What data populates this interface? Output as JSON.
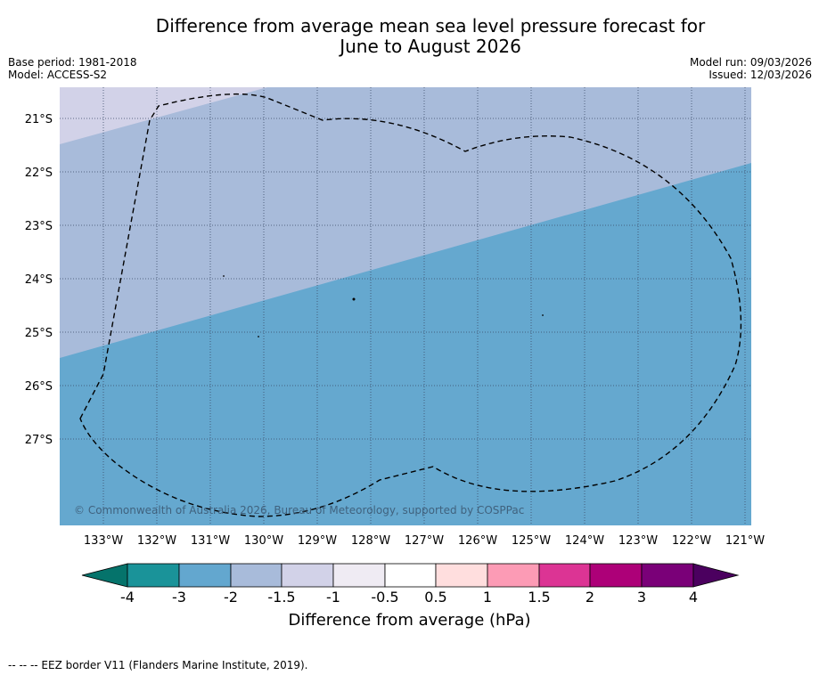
{
  "title_line1": "Difference from average mean sea level pressure forecast for",
  "title_line2": "June to August 2026",
  "meta": {
    "base_period": "Base period: 1981-2018",
    "model": "Model: ACCESS-S2",
    "model_run": "Model run: 09/03/2026",
    "issued": "Issued: 12/03/2026"
  },
  "map": {
    "lat_labels": [
      "21°S",
      "22°S",
      "23°S",
      "24°S",
      "25°S",
      "26°S",
      "27°S"
    ],
    "lon_labels": [
      "133°W",
      "132°W",
      "131°W",
      "130°W",
      "129°W",
      "128°W",
      "127°W",
      "126°W",
      "125°W",
      "124°W",
      "123°W",
      "122°W",
      "121°W"
    ],
    "copyright": "© Commonwealth of Australia 2026, Bureau of Meteorology, supported by COSPPac",
    "band_colors": {
      "minus1_5_to_minus1": "#d2d2e8",
      "minus2_to_minus1_5": "#a8bbda",
      "minus3_to_minus2": "#65a8cf"
    }
  },
  "colorbar": {
    "ticks": [
      "-4",
      "-3",
      "-2",
      "-1.5",
      "-1",
      "-0.5",
      "0.5",
      "1",
      "1.5",
      "2",
      "3",
      "4"
    ],
    "colors": [
      "#05736b",
      "#1a9399",
      "#63a7cf",
      "#a8bbda",
      "#d2d2e8",
      "#efebf3",
      "#ffffff",
      "#ffdede",
      "#fc9bb5",
      "#dc3494",
      "#ad0078",
      "#7a0078",
      "#4b005f"
    ],
    "label": "Difference from average (hPa)"
  },
  "footer": "--  --  -- EEZ border V11 (Flanders Marine Institute, 2019)."
}
